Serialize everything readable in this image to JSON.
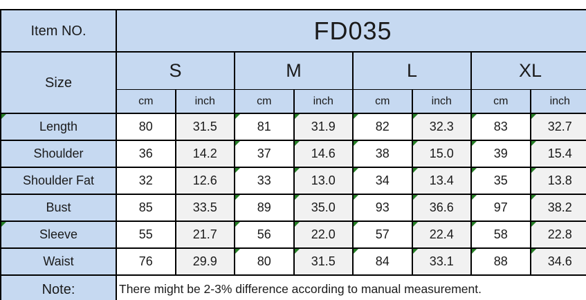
{
  "chart_data": {
    "type": "table",
    "item_no_label": "Item NO.",
    "item_no_value": "FD035",
    "size_label": "Size",
    "sizes": [
      "S",
      "M",
      "L",
      "XL"
    ],
    "unit_headers": [
      "cm",
      "inch"
    ],
    "rows": [
      {
        "label": "Length",
        "values": [
          "80",
          "31.5",
          "81",
          "31.9",
          "82",
          "32.3",
          "83",
          "32.7"
        ]
      },
      {
        "label": "Shoulder",
        "values": [
          "36",
          "14.2",
          "37",
          "14.6",
          "38",
          "15.0",
          "39",
          "15.4"
        ]
      },
      {
        "label": "Shoulder Fat",
        "values": [
          "32",
          "12.6",
          "33",
          "13.0",
          "34",
          "13.4",
          "35",
          "13.8"
        ]
      },
      {
        "label": "Bust",
        "values": [
          "85",
          "33.5",
          "89",
          "35.0",
          "93",
          "36.6",
          "97",
          "38.2"
        ]
      },
      {
        "label": "Sleeve",
        "values": [
          "55",
          "21.7",
          "56",
          "22.0",
          "57",
          "22.4",
          "58",
          "22.8"
        ]
      },
      {
        "label": "Waist",
        "values": [
          "76",
          "29.9",
          "80",
          "31.5",
          "84",
          "33.1",
          "88",
          "34.6"
        ]
      }
    ],
    "note_label": "Note:",
    "note_text": "There might be 2-3% difference according to manual measurement."
  },
  "icons": {
    "flag_icon": "green corner triangle (number-stored-as-text indicator)"
  },
  "flags": {
    "flagged_value_column_indexes": [
      2,
      3,
      4,
      5,
      6,
      7
    ],
    "flagged_label_row_indexes": [
      0,
      4
    ]
  },
  "colors": {
    "header_blue": "#c6d9f1",
    "inch_cell_gray": "#f1f1f1",
    "cm_cell_white": "#ffffff",
    "border_black": "#000000",
    "flag_green": "#267e26",
    "text": "#1a1a1a"
  }
}
